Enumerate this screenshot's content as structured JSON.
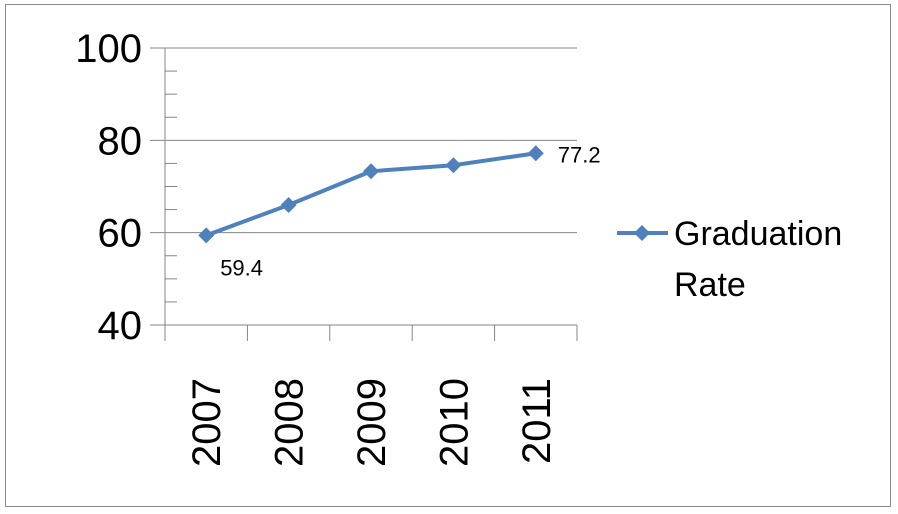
{
  "chart_data": {
    "type": "line",
    "categories": [
      "2007",
      "2008",
      "2009",
      "2010",
      "2011"
    ],
    "series": [
      {
        "name": "Graduation Rate",
        "values": [
          59.4,
          66.0,
          73.3,
          74.6,
          77.2
        ],
        "color": "#4f81bd",
        "marker": "diamond"
      }
    ],
    "data_labels": [
      {
        "index": 0,
        "text": "59.4"
      },
      {
        "index": 4,
        "text": "77.2"
      }
    ],
    "ylim": [
      40,
      100
    ],
    "y_major_ticks": [
      40,
      60,
      80,
      100
    ],
    "y_tick_labels": [
      "40",
      "60",
      "80",
      "100"
    ],
    "y_minor_step": 5,
    "grid": "horizontal major",
    "legend": {
      "position": "right",
      "lines": [
        "Graduation",
        "Rate"
      ]
    },
    "xlabel": "",
    "ylabel": "",
    "title": ""
  }
}
